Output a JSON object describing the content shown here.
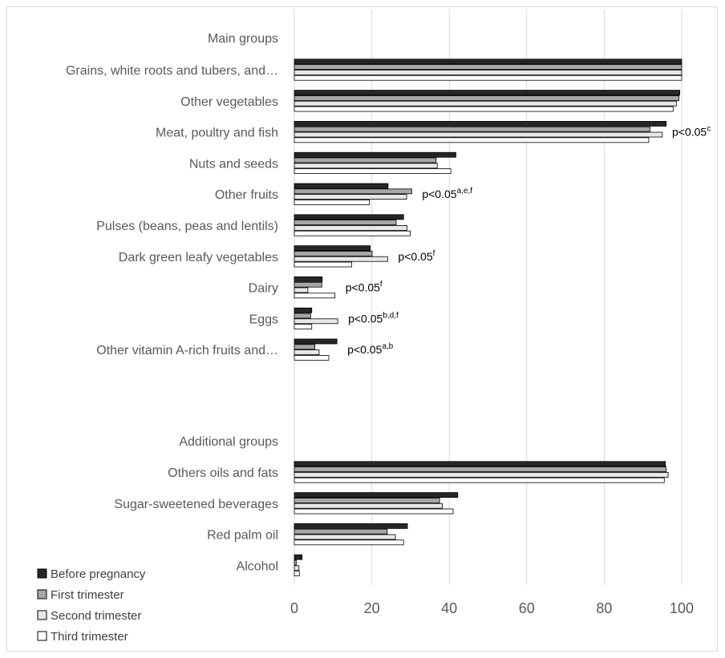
{
  "chart_data": {
    "type": "bar",
    "orientation": "horizontal",
    "title": "",
    "xlabel": "",
    "ylabel": "",
    "xlim": [
      0,
      100
    ],
    "xticks": [
      0,
      20,
      40,
      60,
      80,
      100
    ],
    "grid": true,
    "legend_position": "bottom-left",
    "series": [
      {
        "name": "Before pregnancy",
        "color": "#262626"
      },
      {
        "name": "First trimester",
        "color": "#a6a6a6"
      },
      {
        "name": "Second trimester",
        "color": "#e7e7e7"
      },
      {
        "name": "Third trimester",
        "color": "#ffffff"
      }
    ],
    "groups": [
      {
        "label": "Main groups",
        "categories": [
          {
            "name": "Grains, white roots and tubers, and…",
            "values": [
              100,
              100,
              100,
              100
            ],
            "annotation": null
          },
          {
            "name": "Other vegetables",
            "values": [
              99.5,
              99.3,
              98.7,
              97.8
            ],
            "annotation": null
          },
          {
            "name": "Meat, poultry and fish",
            "values": [
              96,
              91.8,
              95,
              91.5
            ],
            "annotation": {
              "text": "p<0.05",
              "sup": "c"
            }
          },
          {
            "name": "Nuts and seeds",
            "values": [
              41.7,
              36.6,
              36.9,
              40.4
            ],
            "annotation": null
          },
          {
            "name": "Other fruits",
            "values": [
              24.2,
              30.3,
              29,
              19.4
            ],
            "annotation": {
              "text": "p<0.05",
              "sup": "a,e,f"
            }
          },
          {
            "name": "Pulses (beans, peas and lentils)",
            "values": [
              28.2,
              26.3,
              29.1,
              29.9
            ],
            "annotation": null
          },
          {
            "name": "Dark green leafy vegetables",
            "values": [
              19.6,
              20.1,
              24.1,
              14.8
            ],
            "annotation": {
              "text": "p<0.05",
              "sup": "f"
            }
          },
          {
            "name": "Dairy",
            "values": [
              7.2,
              7.1,
              3.5,
              10.5
            ],
            "annotation": {
              "text": "p<0.05",
              "sup": "f"
            }
          },
          {
            "name": "Eggs",
            "values": [
              4.5,
              4.2,
              11.2,
              4.5
            ],
            "annotation": {
              "text": "p<0.05",
              "sup": "b,d,f"
            }
          },
          {
            "name": "Other vitamin A-rich fruits and…",
            "values": [
              11,
              5.3,
              6.4,
              8.9
            ],
            "annotation": {
              "text": "p<0.05",
              "sup": "a,b"
            }
          }
        ]
      },
      {
        "label": "Additional groups",
        "categories": [
          {
            "name": "Others oils and fats",
            "values": [
              95.8,
              96,
              96.5,
              95.5
            ],
            "annotation": null
          },
          {
            "name": "Sugar-sweetened beverages",
            "values": [
              42.2,
              37.5,
              38.2,
              41
            ],
            "annotation": null
          },
          {
            "name": "Red palm oil",
            "values": [
              29.2,
              24,
              26.1,
              28.2
            ],
            "annotation": null
          },
          {
            "name": "Alcohol",
            "values": [
              2,
              0.5,
              1.2,
              1.3
            ],
            "annotation": null
          }
        ]
      }
    ]
  }
}
